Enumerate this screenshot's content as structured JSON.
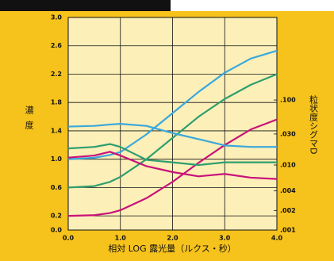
{
  "chart_data": {
    "type": "line",
    "y_label": "濃度",
    "y2_label": "粒状度シグマD",
    "x_label": "相対 LOG 露光量（ルクス・秒）",
    "x": [
      0,
      0.5,
      0.8,
      1.0,
      1.5,
      2.0,
      2.5,
      3.0,
      3.5,
      4.0
    ],
    "series": [
      {
        "color": "#3aa8dc",
        "values": [
          1.0,
          1.02,
          1.06,
          1.1,
          1.35,
          1.65,
          1.95,
          2.22,
          2.42,
          2.53
        ]
      },
      {
        "color": "#2f9e6e",
        "values": [
          0.6,
          0.62,
          0.68,
          0.75,
          1.0,
          1.3,
          1.6,
          1.85,
          2.05,
          2.2
        ]
      },
      {
        "color": "#c8127a",
        "values": [
          0.2,
          0.21,
          0.24,
          0.28,
          0.45,
          0.68,
          0.95,
          1.2,
          1.42,
          1.56
        ]
      },
      {
        "color": "#3aa8dc",
        "axis": "y2",
        "values": [
          0.039,
          0.04,
          0.042,
          0.043,
          0.04,
          0.031,
          0.025,
          0.02,
          0.019,
          0.019
        ]
      },
      {
        "color": "#2f9e6e",
        "axis": "y2",
        "values": [
          0.018,
          0.019,
          0.021,
          0.019,
          0.012,
          0.011,
          0.01,
          0.011,
          0.011,
          0.011
        ]
      },
      {
        "color": "#c8127a",
        "axis": "y2",
        "values": [
          0.013,
          0.014,
          0.016,
          0.014,
          0.0096,
          0.0078,
          0.0067,
          0.0073,
          0.0064,
          0.0061
        ]
      }
    ],
    "xlim": [
      0,
      4
    ],
    "xticks": [
      {
        "value": 0,
        "label": "0.0"
      },
      {
        "value": 1,
        "label": "1.0"
      },
      {
        "value": 2,
        "label": "2.0"
      },
      {
        "value": 3,
        "label": "3.0"
      },
      {
        "value": 4,
        "label": "4.0"
      }
    ],
    "ylim": [
      0,
      3
    ],
    "yticks": [
      {
        "value": 0,
        "label": "0.0"
      },
      0.2,
      0.6,
      {
        "value": 1,
        "label": "1.0"
      },
      1.4,
      1.8,
      2.2,
      2.6,
      {
        "value": 3,
        "label": "3.0"
      }
    ],
    "y2lim": [
      0.001,
      1.86
    ],
    "y2scale": "log",
    "y2ticks": [
      {
        "value": 0.001,
        "label": ".001"
      },
      {
        "value": 0.002,
        "label": ".002"
      },
      {
        "value": 0.004,
        "label": ".004"
      },
      {
        "value": 0.01,
        "label": ".010"
      },
      {
        "value": 0.03,
        "label": ".030"
      },
      {
        "value": 0.1,
        "label": ".100"
      }
    ],
    "grid": true
  }
}
